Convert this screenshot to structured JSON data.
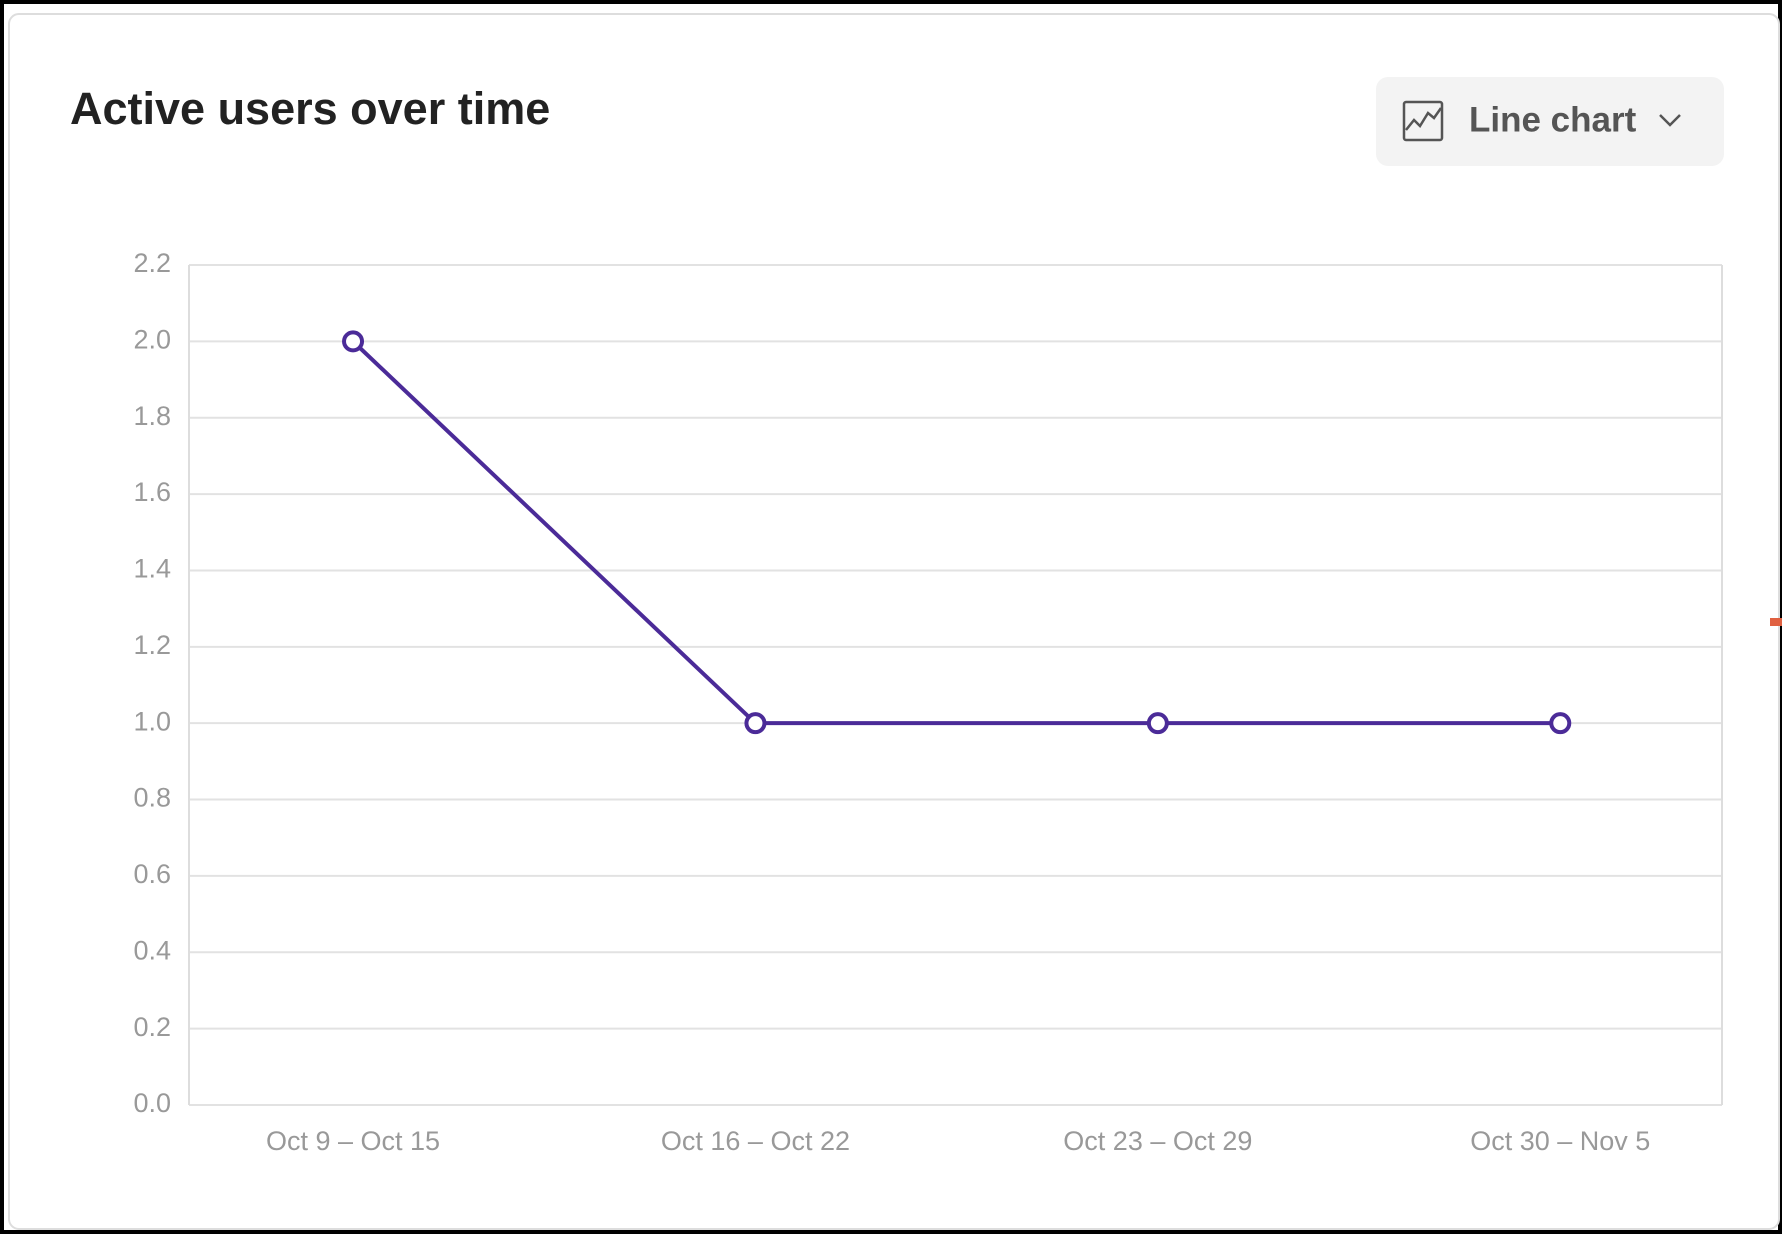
{
  "chart_data": {
    "type": "line",
    "title": "Active users over time",
    "categories": [
      "Oct 9 – Oct 15",
      "Oct 16 – Oct 22",
      "Oct 23 – Oct 29",
      "Oct 30 – Nov 5"
    ],
    "values": [
      2,
      1,
      1,
      1
    ],
    "color": "#4b2b98",
    "ylim": [
      0,
      2.2
    ],
    "yticks": [
      {
        "value": 0,
        "label": "0.0"
      },
      0.2,
      0.4,
      0.6,
      0.8,
      {
        "value": 1,
        "label": "1.0"
      },
      1.2,
      1.4,
      1.6,
      1.8,
      {
        "value": 2,
        "label": "2.0"
      },
      2.2
    ],
    "grid": true
  },
  "controls": {
    "chart_type": "Line chart"
  }
}
